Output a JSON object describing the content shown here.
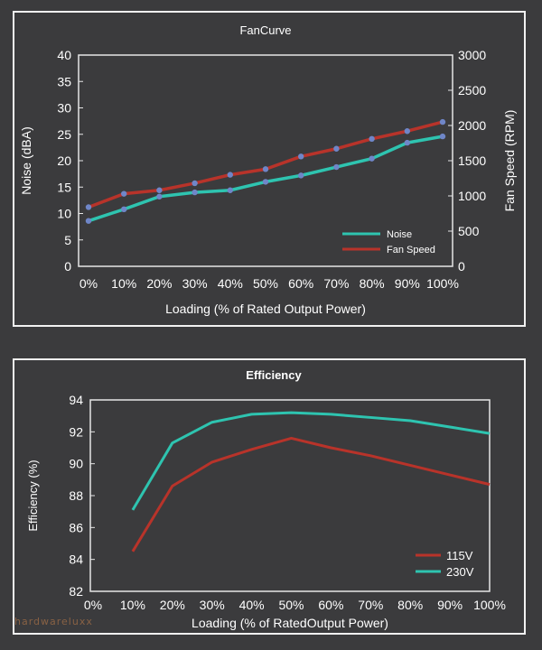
{
  "chart_data": [
    {
      "type": "line",
      "title": "FanCurve",
      "xlabel": "Loading (% of Rated Output Power)",
      "ylabel": "Noise (dBA)",
      "y2label": "Fan Speed (RPM)",
      "categories": [
        "0%",
        "10%",
        "20%",
        "30%",
        "40%",
        "50%",
        "60%",
        "70%",
        "80%",
        "90%",
        "100%"
      ],
      "ylim": [
        0,
        40
      ],
      "yticks": [
        "0",
        "5",
        "10",
        "15",
        "20",
        "25",
        "30",
        "35",
        "40"
      ],
      "y2lim": [
        0,
        3000
      ],
      "y2ticks": [
        "0",
        "500",
        "1000",
        "1500",
        "2000",
        "2500",
        "3000"
      ],
      "legend_position": "bottom-right",
      "series": [
        {
          "name": "Noise",
          "axis": "left",
          "color": "#2ec4b0",
          "values": [
            8.6,
            10.8,
            13.2,
            14.0,
            14.4,
            16.0,
            17.2,
            18.8,
            20.4,
            23.4,
            24.6
          ]
        },
        {
          "name": "Fan Speed",
          "axis": "right",
          "color": "#b8332a",
          "values": [
            840,
            1030,
            1080,
            1180,
            1300,
            1380,
            1560,
            1670,
            1810,
            1920,
            2050
          ]
        }
      ]
    },
    {
      "type": "line",
      "title": "Efficiency",
      "xlabel": "Loading (% of RatedOutput Power)",
      "ylabel": "Efficiency (%)",
      "categories": [
        "0%",
        "10%",
        "20%",
        "30%",
        "40%",
        "50%",
        "60%",
        "70%",
        "80%",
        "90%",
        "100%"
      ],
      "ylim": [
        82,
        94
      ],
      "yticks": [
        "82",
        "84",
        "86",
        "88",
        "90",
        "92",
        "94"
      ],
      "legend_position": "bottom-right",
      "series": [
        {
          "name": "115V",
          "color": "#b8332a",
          "values": [
            null,
            84.5,
            88.6,
            90.1,
            90.9,
            91.6,
            91.0,
            90.5,
            89.9,
            89.3,
            88.7
          ]
        },
        {
          "name": "230V",
          "color": "#2ec4b0",
          "values": [
            null,
            87.1,
            91.3,
            92.6,
            93.1,
            93.2,
            93.1,
            92.9,
            92.7,
            92.3,
            91.9
          ]
        }
      ]
    }
  ],
  "watermark": "hardwareluxx"
}
